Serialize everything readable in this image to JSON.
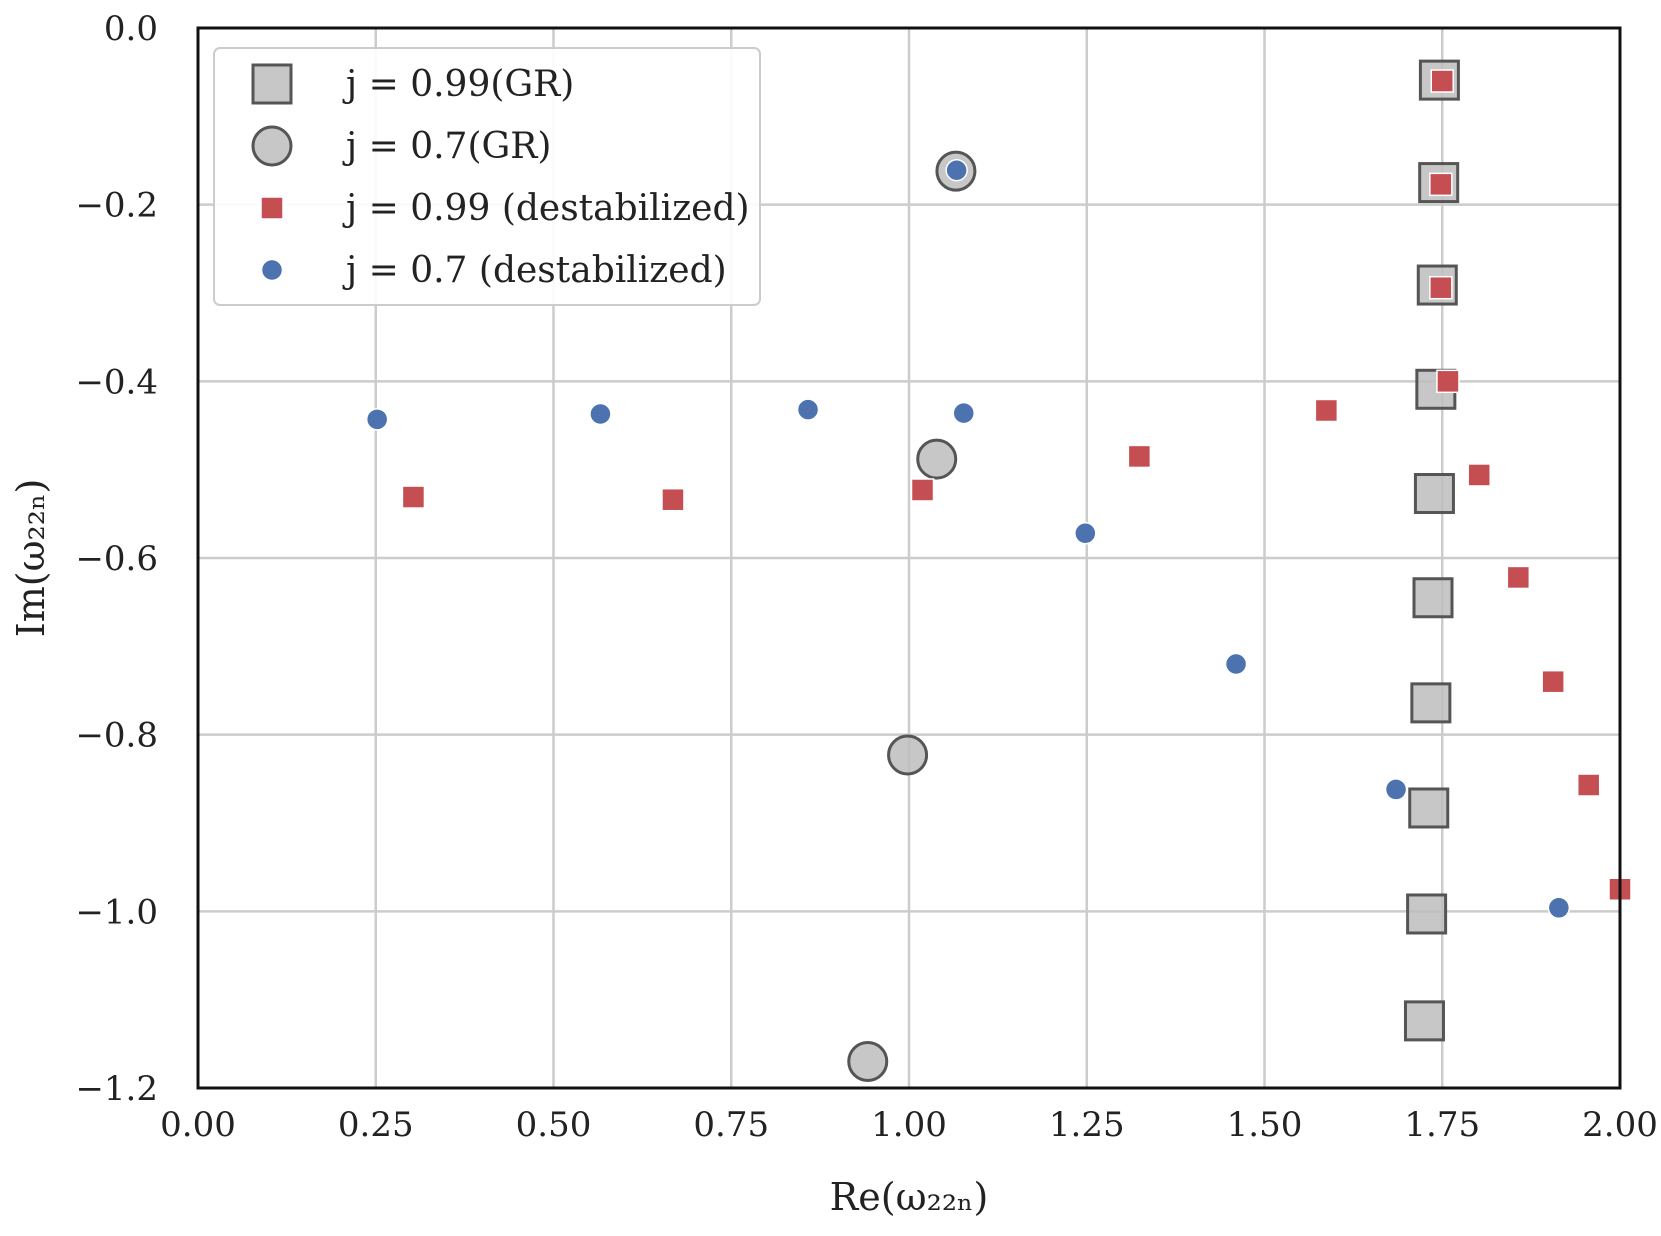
{
  "chart_data": {
    "type": "scatter",
    "title": "",
    "xlabel": "Re(ω₂₂ₙ)",
    "ylabel": "Im(ω₂₂ₙ)",
    "xlim": [
      0.0,
      2.0
    ],
    "ylim": [
      -1.2,
      0.0
    ],
    "xticks": [
      0.0,
      0.25,
      0.5,
      0.75,
      1.0,
      1.25,
      1.5,
      1.75,
      2.0
    ],
    "xtick_labels": [
      "0.00",
      "0.25",
      "0.50",
      "0.75",
      "1.00",
      "1.25",
      "1.50",
      "1.75",
      "2.00"
    ],
    "yticks": [
      0.0,
      -0.2,
      -0.4,
      -0.6,
      -0.8,
      -1.0,
      -1.2
    ],
    "ytick_labels": [
      "0.0",
      "−0.2",
      "−0.4",
      "−0.6",
      "−0.8",
      "−1.0",
      "−1.2"
    ],
    "grid": true,
    "legend_position": "top-left",
    "series": [
      {
        "name": "j = 0.99(GR)",
        "marker": "square-large",
        "color": "#bdbdbd",
        "edge_color": "#555555",
        "points": [
          [
            1.746,
            -0.059
          ],
          [
            1.745,
            -0.175
          ],
          [
            1.743,
            -0.291
          ],
          [
            1.741,
            -0.409
          ],
          [
            1.739,
            -0.527
          ],
          [
            1.737,
            -0.645
          ],
          [
            1.734,
            -0.764
          ],
          [
            1.731,
            -0.883
          ],
          [
            1.728,
            -1.003
          ],
          [
            1.725,
            -1.124
          ]
        ]
      },
      {
        "name": "j = 0.7(GR)",
        "marker": "circle-large",
        "color": "#bdbdbd",
        "edge_color": "#555555",
        "points": [
          [
            1.066,
            -0.162
          ],
          [
            1.039,
            -0.488
          ],
          [
            0.998,
            -0.823
          ],
          [
            0.942,
            -1.17
          ]
        ]
      },
      {
        "name": "j = 0.99 (destabilized)",
        "marker": "square-small",
        "color": "#c44e52",
        "edge_color": "#ffffff",
        "points": [
          [
            1.75,
            -0.06
          ],
          [
            1.748,
            -0.177
          ],
          [
            1.748,
            -0.294
          ],
          [
            1.758,
            -0.4
          ],
          [
            1.587,
            -0.433
          ],
          [
            1.324,
            -0.485
          ],
          [
            1.019,
            -0.523
          ],
          [
            0.668,
            -0.534
          ],
          [
            0.303,
            -0.531
          ],
          [
            1.802,
            -0.506
          ],
          [
            1.857,
            -0.622
          ],
          [
            1.906,
            -0.74
          ],
          [
            1.956,
            -0.857
          ],
          [
            2.0,
            -0.975
          ]
        ]
      },
      {
        "name": "j = 0.7 (destabilized)",
        "marker": "circle-small",
        "color": "#4c72b0",
        "edge_color": "#ffffff",
        "points": [
          [
            1.067,
            -0.161
          ],
          [
            1.077,
            -0.436
          ],
          [
            0.858,
            -0.432
          ],
          [
            0.566,
            -0.437
          ],
          [
            0.252,
            -0.443
          ],
          [
            1.248,
            -0.572
          ],
          [
            1.46,
            -0.72
          ],
          [
            1.685,
            -0.862
          ],
          [
            1.914,
            -0.996
          ]
        ]
      }
    ]
  }
}
